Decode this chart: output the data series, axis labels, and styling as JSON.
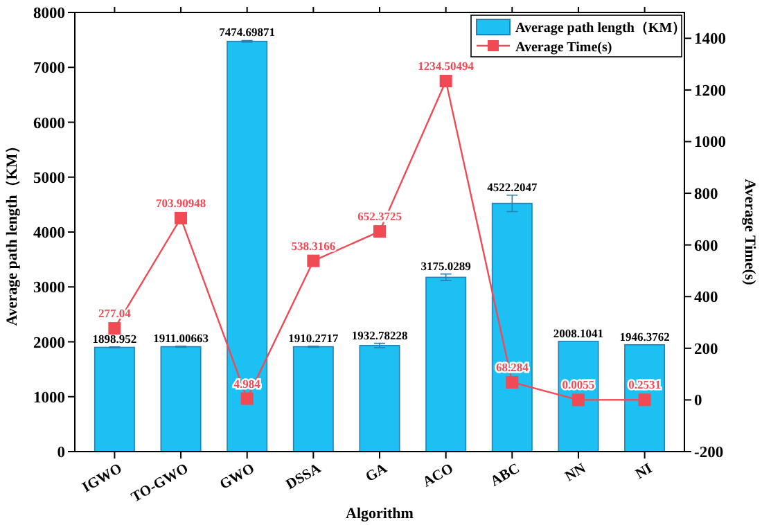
{
  "chart_data": {
    "type": "bar",
    "xlabel": "Algorithm",
    "ylabel": "Average path length（KM）",
    "y2label": "Average Time(s)",
    "categories": [
      "IGWO",
      "TO-GWO",
      "GWO",
      "DSSA",
      "GA",
      "ACO",
      "ABC",
      "NN",
      "NI"
    ],
    "series": [
      {
        "name": "Average path length（KM）",
        "color": "#1cc0f2",
        "values": [
          1898.952,
          1911.00663,
          7474.69871,
          1910.2717,
          1932.78228,
          3175.0289,
          4522.2047,
          2008.1041,
          1946.3762
        ],
        "errors": [
          10,
          10,
          15,
          10,
          40,
          60,
          150,
          null,
          null
        ],
        "value_labels": [
          "1898.952",
          "1911.00663",
          "7474.69871",
          "1910.2717",
          "1932.78228",
          "3175.0289",
          "4522.2047",
          "2008.1041",
          "1946.3762"
        ]
      },
      {
        "name": "Average Time(s)",
        "type": "line",
        "axis": "y2",
        "color": "#f04a55",
        "marker": "square",
        "values": [
          277.04,
          703.90948,
          4.984,
          538.3166,
          652.3725,
          1234.50494,
          68.284,
          0.0055,
          0.2531
        ],
        "value_labels": [
          "277.04",
          "703.90948",
          "4.984",
          "538.3166",
          "652.3725",
          "1234.50494",
          "68.284",
          "0.0055",
          "0.2531"
        ]
      }
    ],
    "ylim": [
      0,
      8000
    ],
    "yticks": [
      0,
      1000,
      2000,
      3000,
      4000,
      5000,
      6000,
      7000,
      8000
    ],
    "y2lim": [
      -200,
      1500
    ],
    "y2ticks": [
      -200,
      0,
      200,
      400,
      600,
      800,
      1000,
      1200,
      1400
    ],
    "legend": "top right",
    "grid": false
  }
}
